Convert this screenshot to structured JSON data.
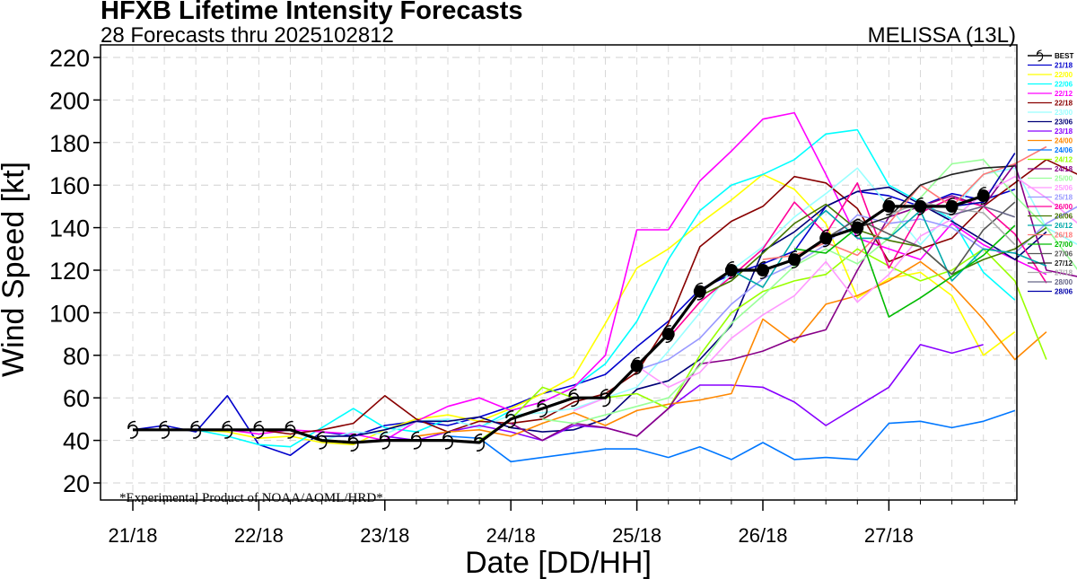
{
  "header": {
    "title": "HFXB Lifetime Intensity Forecasts",
    "subtitle": "28 Forecasts thru 2025102812",
    "storm": "MELISSA (13L)"
  },
  "chart_data": {
    "type": "line",
    "xlabel": "Date [DD/HH]",
    "ylabel": "Wind Speed [kt]",
    "note": "*Experimental Product of NOAA/AOML/HRD*",
    "x_unit_hours": 6,
    "x_ticks": [
      {
        "label": "21/18",
        "x": 0
      },
      {
        "label": "22/18",
        "x": 4
      },
      {
        "label": "23/18",
        "x": 8
      },
      {
        "label": "24/18",
        "x": 12
      },
      {
        "label": "25/18",
        "x": 16
      },
      {
        "label": "26/18",
        "x": 20
      },
      {
        "label": "27/18",
        "x": 24
      }
    ],
    "xlim": [
      0,
      28
    ],
    "ylim": [
      10,
      220
    ],
    "y_ticks": [
      20,
      40,
      60,
      80,
      100,
      120,
      140,
      160,
      180,
      200,
      220
    ],
    "grid": true,
    "legend_position": "right",
    "best_track": {
      "name": "BEST",
      "color": "#000000",
      "x": [
        0,
        1,
        2,
        3,
        4,
        5,
        6,
        7,
        8,
        9,
        10,
        11,
        12,
        13,
        14,
        15,
        16,
        17,
        18,
        19,
        20,
        21,
        22,
        23,
        24,
        25,
        26,
        27
      ],
      "y": [
        45,
        45,
        45,
        45,
        45,
        45,
        40,
        39,
        40,
        40,
        40,
        39,
        50,
        55,
        60,
        60,
        75,
        90,
        110,
        120,
        120,
        125,
        135,
        140,
        150,
        150,
        150,
        155
      ]
    },
    "series": [
      {
        "name": "21/18",
        "color": "#0000cc",
        "start": 0,
        "values": [
          45,
          47,
          44,
          61,
          38,
          33,
          44,
          42,
          47,
          49,
          47,
          51,
          56,
          62,
          66,
          71,
          84,
          96,
          111,
          118,
          123,
          129,
          150,
          157,
          155,
          150,
          156,
          153,
          158
        ]
      },
      {
        "name": "22/00",
        "color": "#ffff00",
        "start": 1,
        "values": [
          45,
          45,
          44,
          41,
          42,
          39,
          38,
          45,
          50,
          52,
          49,
          55,
          62,
          70,
          95,
          121,
          130,
          142,
          153,
          165,
          158,
          142,
          107,
          116,
          119,
          108,
          80,
          91
        ]
      },
      {
        "name": "22/06",
        "color": "#00ffff",
        "start": 2,
        "values": [
          45,
          42,
          38,
          37,
          46,
          55,
          46,
          44,
          50,
          46,
          54,
          58,
          65,
          76,
          96,
          125,
          148,
          160,
          165,
          172,
          184,
          186,
          160,
          152,
          144,
          119,
          106
        ]
      },
      {
        "name": "22/12",
        "color": "#ff00ff",
        "start": 3,
        "values": [
          45,
          43,
          45,
          44,
          43,
          40,
          49,
          56,
          60,
          54,
          58,
          65,
          80,
          139,
          139,
          162,
          176,
          191,
          194,
          165,
          135,
          130,
          125,
          142,
          132,
          125,
          118
        ]
      },
      {
        "name": "22/18",
        "color": "#880000",
        "start": 4,
        "values": [
          45,
          43,
          45,
          48,
          61,
          50,
          44,
          49,
          48,
          50,
          58,
          62,
          72,
          95,
          131,
          143,
          150,
          164,
          161,
          149,
          124,
          130,
          135,
          150,
          161,
          172,
          165
        ]
      },
      {
        "name": "23/00",
        "color": "#99ffff",
        "start": 5,
        "values": [
          45,
          40,
          44,
          43,
          49,
          50,
          46,
          52,
          53,
          55,
          60,
          65,
          82,
          100,
          120,
          131,
          145,
          156,
          168,
          150,
          132,
          148,
          165,
          168,
          140,
          132
        ]
      },
      {
        "name": "23/06",
        "color": "#000077",
        "start": 6,
        "values": [
          42,
          42,
          45,
          49,
          49,
          51,
          46,
          44,
          45,
          50,
          64,
          68,
          78,
          94,
          129,
          138,
          150,
          157,
          159,
          151,
          143,
          134,
          125,
          138
        ]
      },
      {
        "name": "23/18",
        "color": "#8800ff",
        "start": 8,
        "values": [
          42,
          40,
          44,
          47,
          44,
          40,
          47,
          46,
          42,
          55,
          66,
          66,
          65,
          58,
          47,
          56,
          65,
          85,
          81,
          85
        ]
      },
      {
        "name": "24/00",
        "color": "#ff8800",
        "start": 9,
        "values": [
          42,
          44,
          45,
          42,
          48,
          53,
          47,
          54,
          57,
          59,
          62,
          97,
          86,
          104,
          108,
          115,
          124,
          113,
          97,
          78,
          91
        ]
      },
      {
        "name": "24/06",
        "color": "#0077ff",
        "start": 10,
        "values": [
          42,
          41,
          30,
          32,
          34,
          36,
          36,
          32,
          37,
          31,
          39,
          31,
          32,
          31,
          48,
          49,
          46,
          49,
          54
        ]
      },
      {
        "name": "24/12",
        "color": "#99ff00",
        "start": 11,
        "values": [
          40,
          50,
          65,
          60,
          60,
          62,
          55,
          80,
          100,
          110,
          115,
          118,
          130,
          122,
          115,
          120,
          130,
          115,
          78
        ]
      },
      {
        "name": "24/18",
        "color": "#880088",
        "start": 12,
        "values": [
          48,
          40,
          48,
          46,
          42,
          55,
          76,
          78,
          82,
          88,
          92,
          120,
          145,
          150,
          155,
          150,
          170,
          120,
          117
        ]
      },
      {
        "name": "25/00",
        "color": "#99ff99",
        "start": 13,
        "values": [
          50,
          48,
          52,
          56,
          60,
          75,
          95,
          108,
          122,
          130,
          123,
          135,
          154,
          170,
          172,
          155,
          140,
          120
        ]
      },
      {
        "name": "25/06",
        "color": "#ff99ff",
        "start": 14,
        "values": [
          54,
          60,
          75,
          65,
          72,
          88,
          99,
          108,
          124,
          105,
          118,
          136,
          144,
          156,
          164,
          154,
          142,
          118
        ]
      },
      {
        "name": "25/18",
        "color": "#9999ff",
        "start": 16,
        "values": [
          73,
          78,
          88,
          104,
          116,
          123,
          132,
          146,
          142,
          144,
          140,
          130,
          128,
          142,
          150
        ]
      },
      {
        "name": "26/00",
        "color": "#ff0099",
        "start": 17,
        "values": [
          88,
          105,
          117,
          130,
          152,
          137,
          161,
          121,
          147,
          154,
          150,
          137,
          114
        ]
      },
      {
        "name": "26/06",
        "color": "#447700",
        "start": 18,
        "values": [
          108,
          115,
          128,
          142,
          151,
          139,
          134,
          131,
          118,
          125,
          130,
          140
        ]
      },
      {
        "name": "26/12",
        "color": "#00aaaa",
        "start": 19,
        "values": [
          120,
          112,
          135,
          148,
          135,
          135,
          148,
          115,
          130,
          128,
          122
        ]
      },
      {
        "name": "26/18",
        "color": "#ff7777",
        "start": 20,
        "values": [
          125,
          127,
          133,
          127,
          142,
          160,
          150,
          165,
          170,
          178
        ]
      },
      {
        "name": "27/00",
        "color": "#00bb00",
        "start": 21,
        "values": [
          130,
          128,
          140,
          98,
          107,
          117,
          127,
          141
        ]
      },
      {
        "name": "27/06",
        "color": "#555555",
        "start": 22,
        "values": [
          135,
          144,
          137,
          131,
          118,
          139,
          152
        ]
      },
      {
        "name": "27/12",
        "color": "#222222",
        "start": 23,
        "values": [
          140,
          145,
          160,
          165,
          168,
          169
        ]
      },
      {
        "name": "27/18",
        "color": "#aaaaaa",
        "start": 24,
        "values": [
          146,
          152,
          149,
          147,
          132
        ]
      },
      {
        "name": "28/00",
        "color": "#666688",
        "start": 25,
        "values": [
          150,
          146,
          150,
          145
        ]
      },
      {
        "name": "28/06",
        "color": "#0000aa",
        "start": 26,
        "values": [
          150,
          152,
          175
        ]
      }
    ]
  }
}
